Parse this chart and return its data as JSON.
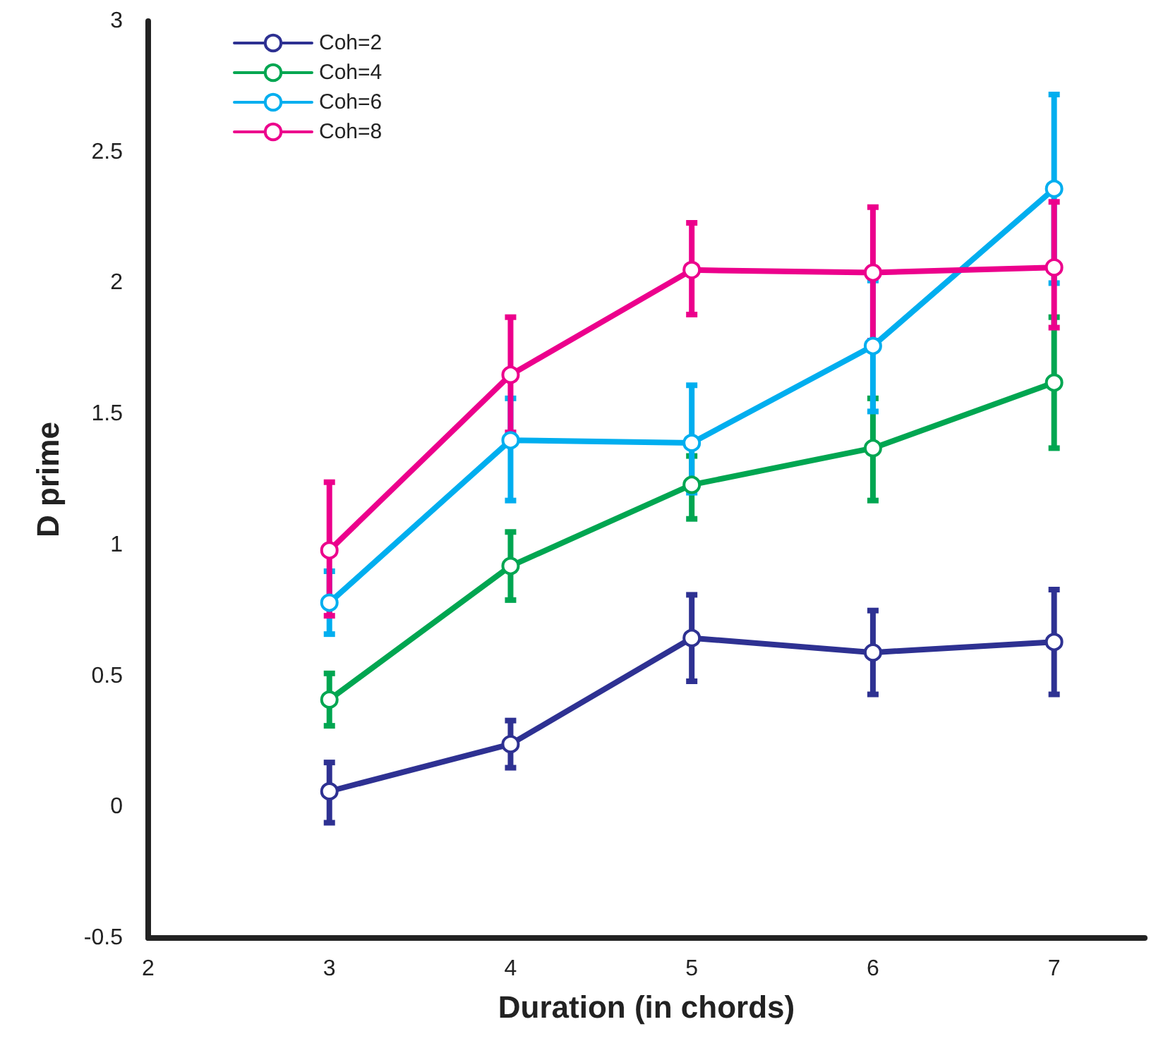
{
  "chart_data": {
    "type": "line",
    "xlabel": "Duration (in chords)",
    "ylabel": "D prime",
    "x": [
      3,
      4,
      5,
      6,
      7
    ],
    "xlim": [
      2,
      7.5
    ],
    "xticks": [
      2,
      3,
      4,
      5,
      6,
      7
    ],
    "ylim": [
      -0.5,
      3
    ],
    "yticks": [
      -0.5,
      0,
      0.5,
      1,
      1.5,
      2,
      2.5,
      3
    ],
    "grid": false,
    "legend": "top left",
    "marker": "circle",
    "line_style": "solid",
    "series": [
      {
        "name": "Coh=2",
        "color": "#2e3192",
        "values": [
          0.06,
          0.24,
          0.645,
          0.59,
          0.63
        ],
        "errors": [
          [
            -0.06,
            0.17
          ],
          [
            0.15,
            0.33
          ],
          [
            0.48,
            0.81
          ],
          [
            0.43,
            0.75
          ],
          [
            0.43,
            0.83
          ]
        ]
      },
      {
        "name": "Coh=4",
        "color": "#00a651",
        "values": [
          0.41,
          0.92,
          1.23,
          1.37,
          1.62
        ],
        "errors": [
          [
            0.31,
            0.51
          ],
          [
            0.79,
            1.05
          ],
          [
            1.1,
            1.34
          ],
          [
            1.17,
            1.56
          ],
          [
            1.37,
            1.87
          ]
        ]
      },
      {
        "name": "Coh=6",
        "color": "#00aeef",
        "values": [
          0.78,
          1.4,
          1.39,
          1.76,
          2.36
        ],
        "errors": [
          [
            0.66,
            0.9
          ],
          [
            1.17,
            1.56
          ],
          [
            1.2,
            1.61
          ],
          [
            1.51,
            2.01
          ],
          [
            2.0,
            2.72
          ]
        ]
      },
      {
        "name": "Coh=8",
        "color": "#ec008c",
        "values": [
          0.98,
          1.65,
          2.05,
          2.04,
          2.06
        ],
        "errors": [
          [
            0.73,
            1.24
          ],
          [
            1.43,
            1.87
          ],
          [
            1.88,
            2.23
          ],
          [
            1.78,
            2.29
          ],
          [
            1.83,
            2.31
          ]
        ]
      }
    ]
  }
}
